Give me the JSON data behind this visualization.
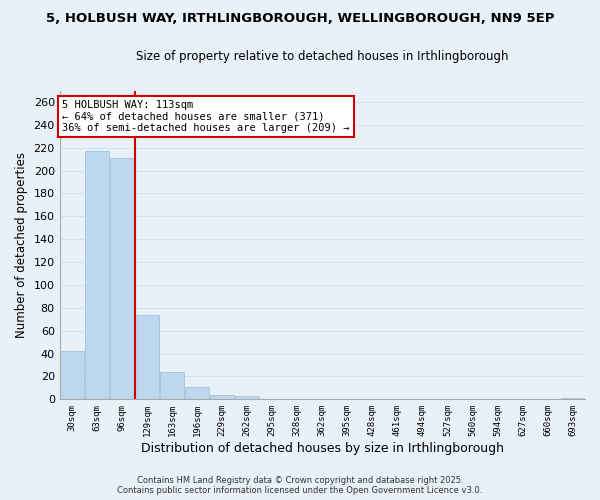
{
  "title": "5, HOLBUSH WAY, IRTHLINGBOROUGH, WELLINGBOROUGH, NN9 5EP",
  "subtitle": "Size of property relative to detached houses in Irthlingborough",
  "xlabel": "Distribution of detached houses by size in Irthlingborough",
  "ylabel": "Number of detached properties",
  "bar_color": "#bdd7ee",
  "bar_edge_color": "#9bbcd8",
  "categories": [
    "30sqm",
    "63sqm",
    "96sqm",
    "129sqm",
    "163sqm",
    "196sqm",
    "229sqm",
    "262sqm",
    "295sqm",
    "328sqm",
    "362sqm",
    "395sqm",
    "428sqm",
    "461sqm",
    "494sqm",
    "527sqm",
    "560sqm",
    "594sqm",
    "627sqm",
    "660sqm",
    "693sqm"
  ],
  "values": [
    42,
    217,
    211,
    74,
    24,
    11,
    4,
    3,
    0,
    0,
    0,
    0,
    0,
    0,
    0,
    0,
    0,
    0,
    0,
    0,
    1
  ],
  "ylim": [
    0,
    270
  ],
  "yticks": [
    0,
    20,
    40,
    60,
    80,
    100,
    120,
    140,
    160,
    180,
    200,
    220,
    240,
    260
  ],
  "vline_x": 2.5,
  "vline_color": "#cc0000",
  "annotation_title": "5 HOLBUSH WAY: 113sqm",
  "annotation_line1": "← 64% of detached houses are smaller (371)",
  "annotation_line2": "36% of semi-detached houses are larger (209) →",
  "annotation_box_color": "#ffffff",
  "annotation_box_edge": "#cc0000",
  "grid_color": "#d0e4f0",
  "background_color": "#e8f0f8",
  "footer1": "Contains HM Land Registry data © Crown copyright and database right 2025.",
  "footer2": "Contains public sector information licensed under the Open Government Licence v3.0."
}
